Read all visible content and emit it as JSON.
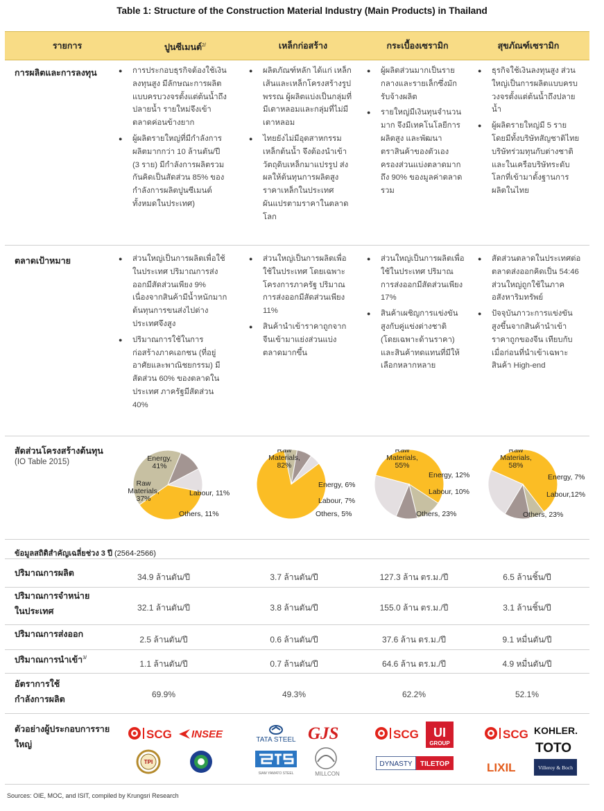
{
  "title": "Table 1: Structure of the Construction Material Industry (Main Products) in Thailand",
  "header": {
    "item_label": "รายการ",
    "columns": [
      "ปูนซีเมนต์",
      "เหล็กก่อสร้าง",
      "กระเบื้องเซรามิก",
      "สุขภัณฑ์เซรามิก"
    ],
    "cement_note": "2/"
  },
  "rows": {
    "production": {
      "label": "การผลิตและการลงทุน",
      "cols": [
        [
          "การประกอบธุรกิจต้องใช้เงินลงทุนสูง มีลักษณะการผลิตแบบครบวงจรตั้งแต่ต้นน้ำถึงปลายน้ำ รายใหม่จึงเข้าตลาดค่อนข้างยาก",
          "ผู้ผลิตรายใหญ่ที่มีกำลังการผลิตมากกว่า 10 ล้านตัน/ปี (3 ราย) มีกำลังการผลิตรวมกันคิดเป็นสัดส่วน 85% ของกำลังการผลิตปูนซีเมนต์ทั้งหมดในประเทศ)"
        ],
        [
          "ผลิตภัณฑ์หลัก ได้แก่ เหล็กเส้นและเหล็กโครงสร้างรูปพรรณ ผู้ผลิตแบ่งเป็นกลุ่มที่มีเตาหลอมและกลุ่มที่ไม่มีเตาหลอม",
          "ไทยยังไม่มีอุตสาหกรรมเหล็กต้นน้ำ จึงต้องนำเข้าวัตถุดิบเหล็กมาแปรรูป ส่งผลให้ต้นทุนการผลิตสูง ราคาเหล็กในประเทศผันแปรตามราคาในตลาดโลก"
        ],
        [
          "ผู้ผลิตส่วนมากเป็นรายกลางและรายเล็กซึ่งมักรับจ้างผลิต",
          "รายใหญ่มีเงินทุนจำนวนมาก จึงมีเทคโนโลยีการผลิตสูง และพัฒนาตราสินค้าของตัวเอง ครองส่วนแบ่งตลาดมากถึง 90% ของมูลค่าตลาดรวม"
        ],
        [
          "ธุรกิจใช้เงินลงทุนสูง ส่วนใหญ่เป็นการผลิตแบบครบวงจรตั้งแต่ต้นน้ำถึงปลายน้ำ",
          "ผู้ผลิตรายใหญ่มี 5 ราย โดยมีทั้งบริษัทสัญชาติไทย บริษัทร่วมทุนกับต่างชาติ และในเครือบริษัทระดับโลกที่เข้ามาตั้งฐานการผลิตในไทย"
        ]
      ]
    },
    "market": {
      "label": "ตลาดเป้าหมาย",
      "cols": [
        [
          "ส่วนใหญ่เป็นการผลิตเพื่อใช้ในประเทศ ปริมาณการส่งออกมีสัดส่วนเพียง 9% เนื่องจากสินค้ามีน้ำหนักมาก ต้นทุนการขนส่งไปต่างประเทศจึงสูง",
          "ปริมาณการใช้ในการก่อสร้างภาคเอกชน (ที่อยู่อาศัยและพาณิชยกรรม) มีสัดส่วน 60% ของตลาดในประเทศ ภาครัฐมีสัดส่วน 40%"
        ],
        [
          "ส่วนใหญ่เป็นการผลิตเพื่อใช้ในประเทศ โดยเฉพาะโครงการภาครัฐ ปริมาณการส่งออกมีสัดส่วนเพียง 11%",
          "สินค้านำเข้าราคาถูกจากจีนเข้ามาแย่งส่วนแบ่งตลาดมากขึ้น"
        ],
        [
          "ส่วนใหญ่เป็นการผลิตเพื่อใช้ในประเทศ ปริมาณการส่งออกมีสัดส่วนเพียง 17%",
          "สินค้าเผชิญการแข่งขันสูงกับคู่แข่งต่างชาติ (โดยเฉพาะด้านราคา) และสินค้าทดแทนที่มีให้เลือกหลากหลาย"
        ],
        [
          "สัดส่วนตลาดในประเทศต่อตลาดส่งออกคิดเป็น 54:46 ส่วนใหญ่ถูกใช้ในภาคอสังหาริมทรัพย์",
          "ปัจจุบันภาวะการแข่งขันสูงขึ้นจากสินค้านำเข้าราคาถูกของจีน เทียบกับเมื่อก่อนที่นำเข้าเฉพาะสินค้า High-end"
        ]
      ]
    },
    "cost": {
      "label": "สัดส่วนโครงสร้างต้นทุน",
      "sublabel": "(IO Table 2015)"
    }
  },
  "chart_data": [
    {
      "type": "pie",
      "slices": [
        {
          "name": "Energy",
          "value": 41,
          "label": "Energy,\n41%"
        },
        {
          "name": "Labour",
          "value": 11,
          "label": "Labour, 11%"
        },
        {
          "name": "Others",
          "value": 11,
          "label": "Others, 11%"
        },
        {
          "name": "Raw Materials",
          "value": 37,
          "label": "Raw\nMaterials,\n37%"
        }
      ]
    },
    {
      "type": "pie",
      "slices": [
        {
          "name": "Raw Materials",
          "value": 82,
          "label": "Raw\nMaterials,\n82%"
        },
        {
          "name": "Energy",
          "value": 6,
          "label": "Energy, 6%"
        },
        {
          "name": "Labour",
          "value": 7,
          "label": "Labour, 7%"
        },
        {
          "name": "Others",
          "value": 5,
          "label": "Others, 5%"
        }
      ]
    },
    {
      "type": "pie",
      "slices": [
        {
          "name": "Raw Materials",
          "value": 55,
          "label": "Raw\nMaterials,\n55%"
        },
        {
          "name": "Energy",
          "value": 12,
          "label": "Energy, 12%"
        },
        {
          "name": "Labour",
          "value": 10,
          "label": "Labour, 10%"
        },
        {
          "name": "Others",
          "value": 23,
          "label": "Others, 23%"
        }
      ]
    },
    {
      "type": "pie",
      "slices": [
        {
          "name": "Raw Materials",
          "value": 58,
          "label": "Raw\nMaterials,\n58%"
        },
        {
          "name": "Energy",
          "value": 7,
          "label": "Energy, 7%"
        },
        {
          "name": "Labour",
          "value": 12,
          "label": "Labour,12%"
        },
        {
          "name": "Others",
          "value": 23,
          "label": "Others, 23%"
        }
      ]
    }
  ],
  "colors": {
    "raw": "#fbbd25",
    "energy": "#c7c0a2",
    "labour": "#a39592",
    "others": "#e4dfe1",
    "header": "#f8dc86"
  },
  "stats": {
    "note_bold": "ข้อมูลสถิติสำคัญเฉลี่ยช่วง 3 ปี",
    "note_range": "(2564-2566)",
    "rows": [
      {
        "label": "ปริมาณการผลิต",
        "values": [
          "34.9 ล้านตัน/ปี",
          "3.7 ล้านตัน/ปี",
          "127.3 ล้าน ตร.ม./ปี",
          "6.5 ล้านชิ้น/ปี"
        ]
      },
      {
        "label": "ปริมาณการจำหน่าย\nในประเทศ",
        "values": [
          "32.1 ล้านตัน/ปี",
          "3.8 ล้านตัน/ปี",
          "155.0 ล้าน ตร.ม./ปี",
          "3.1 ล้านชิ้น/ปี"
        ]
      },
      {
        "label": "ปริมาณการส่งออก",
        "values": [
          "2.5 ล้านตัน/ปี",
          "0.6 ล้านตัน/ปี",
          "37.6 ล้าน ตร.ม./ปี",
          "9.1 หมื่นตัน/ปี"
        ]
      },
      {
        "label": "ปริมาณการนำเข้า",
        "note": "3/",
        "values": [
          "1.1 ล้านตัน/ปี",
          "0.7 ล้านตัน/ปี",
          "64.6 ล้าน ตร.ม./ปี",
          "4.9 หมื่นตัน/ปี"
        ]
      },
      {
        "label": "อัตราการใช้\nกำลังการผลิต",
        "values": [
          "69.9%",
          "49.3%",
          "62.2%",
          "52.1%"
        ]
      }
    ]
  },
  "producers": {
    "label": "ตัวอย่างผู้ประกอบการรายใหญ่",
    "logos": {
      "scg": "SCG",
      "insee": "INSEE",
      "tpi": "TPI",
      "tata": "TATA STEEL",
      "gjs": "GJS",
      "sys_caption": "SIAM YAMATO STEEL",
      "millcon": "MILLCON",
      "ui_top": "UI",
      "ui_bottom": "GROUP",
      "dynasty": "DYNASTY",
      "tiletop": "TILETOP",
      "kohler": "KOHLER.",
      "toto": "TOTO",
      "lixil": "LIXIL",
      "vb": "Villeroy & Boch"
    }
  },
  "source": "Sources: OIE, MOC, and ISIT, compiled by Krungsri Research"
}
